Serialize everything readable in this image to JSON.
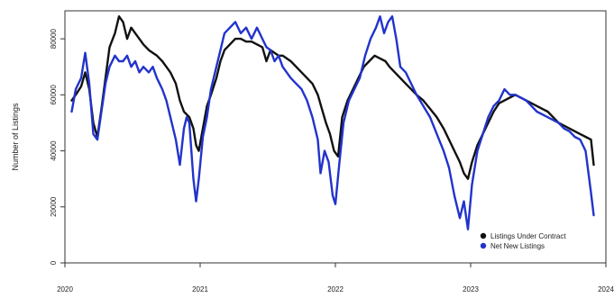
{
  "chart_data": {
    "type": "line",
    "title": "",
    "xlabel": "",
    "ylabel": "Number of Listings",
    "xlim": [
      2020.0,
      2024.0
    ],
    "ylim": [
      0,
      90000
    ],
    "x_ticks": [
      2020,
      2021,
      2022,
      2023,
      2024
    ],
    "x_tick_labels": [
      "2020",
      "2021",
      "2022",
      "2023",
      "2024"
    ],
    "y_ticks": [
      0,
      20000,
      40000,
      60000,
      80000
    ],
    "y_tick_labels": [
      "0",
      "20000",
      "40000",
      "60000",
      "80000"
    ],
    "grid": false,
    "legend_position": "bottom-right",
    "series": [
      {
        "name": "Listings Under Contract",
        "color": "#111111",
        "x": [
          2020.05,
          2020.08,
          2020.12,
          2020.15,
          2020.18,
          2020.21,
          2020.24,
          2020.27,
          2020.3,
          2020.33,
          2020.37,
          2020.4,
          2020.43,
          2020.46,
          2020.49,
          2020.52,
          2020.55,
          2020.58,
          2020.62,
          2020.65,
          2020.68,
          2020.72,
          2020.75,
          2020.78,
          2020.82,
          2020.85,
          2020.88,
          2020.92,
          2020.95,
          2020.97,
          2020.99,
          2021.02,
          2021.05,
          2021.08,
          2021.12,
          2021.15,
          2021.18,
          2021.22,
          2021.26,
          2021.3,
          2021.34,
          2021.38,
          2021.42,
          2021.46,
          2021.49,
          2021.52,
          2021.55,
          2021.58,
          2021.61,
          2021.64,
          2021.67,
          2021.71,
          2021.75,
          2021.79,
          2021.83,
          2021.87,
          2021.9,
          2021.93,
          2021.96,
          2021.99,
          2022.02,
          2022.05,
          2022.09,
          2022.13,
          2022.17,
          2022.21,
          2022.25,
          2022.29,
          2022.33,
          2022.37,
          2022.4,
          2022.44,
          2022.48,
          2022.52,
          2022.56,
          2022.6,
          2022.65,
          2022.7,
          2022.75,
          2022.8,
          2022.84,
          2022.88,
          2022.92,
          2022.95,
          2022.98,
          2023.01,
          2023.05,
          2023.09,
          2023.13,
          2023.17,
          2023.21,
          2023.25,
          2023.29,
          2023.33,
          2023.37,
          2023.41,
          2023.45,
          2023.49,
          2023.53,
          2023.57,
          2023.61,
          2023.65,
          2023.69,
          2023.73,
          2023.77,
          2023.81,
          2023.85,
          2023.89,
          2023.91
        ],
        "values": [
          58000,
          60000,
          63000,
          68000,
          62000,
          50000,
          45000,
          55000,
          66000,
          77000,
          82000,
          88000,
          86000,
          80000,
          84000,
          82000,
          80000,
          78000,
          76000,
          75000,
          74000,
          72000,
          70000,
          68000,
          64000,
          58000,
          54000,
          52000,
          48000,
          42000,
          40000,
          48000,
          56000,
          60000,
          66000,
          72000,
          76000,
          78000,
          80000,
          80000,
          79000,
          79000,
          78000,
          77000,
          72000,
          76000,
          75000,
          74000,
          74000,
          73000,
          72000,
          70000,
          68000,
          66000,
          64000,
          60000,
          55000,
          50000,
          46000,
          40000,
          38000,
          52000,
          58000,
          62000,
          66000,
          70000,
          72000,
          74000,
          73000,
          72000,
          70000,
          68000,
          66000,
          64000,
          62000,
          60000,
          58000,
          55000,
          52000,
          48000,
          44000,
          40000,
          36000,
          32000,
          30000,
          36000,
          42000,
          46000,
          50000,
          54000,
          57000,
          58000,
          59000,
          60000,
          59000,
          58000,
          57000,
          56000,
          55000,
          54000,
          52000,
          50000,
          49000,
          48000,
          47000,
          46000,
          45000,
          44000,
          35000
        ]
      },
      {
        "name": "Net New Listings",
        "color": "#2233cc",
        "x": [
          2020.05,
          2020.08,
          2020.12,
          2020.15,
          2020.18,
          2020.21,
          2020.24,
          2020.27,
          2020.3,
          2020.33,
          2020.37,
          2020.4,
          2020.43,
          2020.46,
          2020.49,
          2020.52,
          2020.55,
          2020.58,
          2020.62,
          2020.65,
          2020.68,
          2020.72,
          2020.75,
          2020.78,
          2020.82,
          2020.85,
          2020.88,
          2020.9,
          2020.92,
          2020.95,
          2020.97,
          2020.99,
          2021.02,
          2021.05,
          2021.08,
          2021.12,
          2021.15,
          2021.18,
          2021.22,
          2021.26,
          2021.3,
          2021.34,
          2021.38,
          2021.42,
          2021.46,
          2021.49,
          2021.52,
          2021.55,
          2021.58,
          2021.61,
          2021.64,
          2021.67,
          2021.71,
          2021.75,
          2021.79,
          2021.83,
          2021.87,
          2021.89,
          2021.92,
          2021.95,
          2021.98,
          2022.0,
          2022.03,
          2022.06,
          2022.1,
          2022.14,
          2022.18,
          2022.22,
          2022.26,
          2022.3,
          2022.33,
          2022.36,
          2022.39,
          2022.42,
          2022.45,
          2022.48,
          2022.52,
          2022.56,
          2022.6,
          2022.65,
          2022.7,
          2022.75,
          2022.8,
          2022.84,
          2022.88,
          2022.92,
          2022.95,
          2022.98,
          2023.01,
          2023.05,
          2023.09,
          2023.13,
          2023.17,
          2023.21,
          2023.25,
          2023.29,
          2023.33,
          2023.37,
          2023.41,
          2023.45,
          2023.49,
          2023.53,
          2023.57,
          2023.61,
          2023.65,
          2023.69,
          2023.73,
          2023.77,
          2023.81,
          2023.85,
          2023.89,
          2023.91
        ],
        "values": [
          54000,
          62000,
          66000,
          75000,
          64000,
          46000,
          44000,
          54000,
          64000,
          70000,
          74000,
          72000,
          72000,
          74000,
          70000,
          72000,
          68000,
          70000,
          68000,
          70000,
          66000,
          62000,
          58000,
          52000,
          44000,
          35000,
          48000,
          52000,
          50000,
          30000,
          22000,
          30000,
          45000,
          52000,
          62000,
          70000,
          76000,
          82000,
          84000,
          86000,
          82000,
          84000,
          80000,
          84000,
          80000,
          77000,
          76000,
          72000,
          74000,
          70000,
          68000,
          66000,
          64000,
          62000,
          58000,
          52000,
          44000,
          32000,
          40000,
          36000,
          24000,
          21000,
          36000,
          50000,
          58000,
          62000,
          66000,
          74000,
          80000,
          84000,
          88000,
          82000,
          86000,
          88000,
          80000,
          70000,
          68000,
          64000,
          60000,
          56000,
          52000,
          46000,
          40000,
          34000,
          24000,
          16000,
          22000,
          12000,
          28000,
          40000,
          46000,
          52000,
          56000,
          58000,
          62000,
          60000,
          60000,
          59000,
          58000,
          56000,
          54000,
          53000,
          52000,
          51000,
          50000,
          48000,
          47000,
          45000,
          44000,
          40000,
          25000,
          17000
        ]
      }
    ]
  }
}
